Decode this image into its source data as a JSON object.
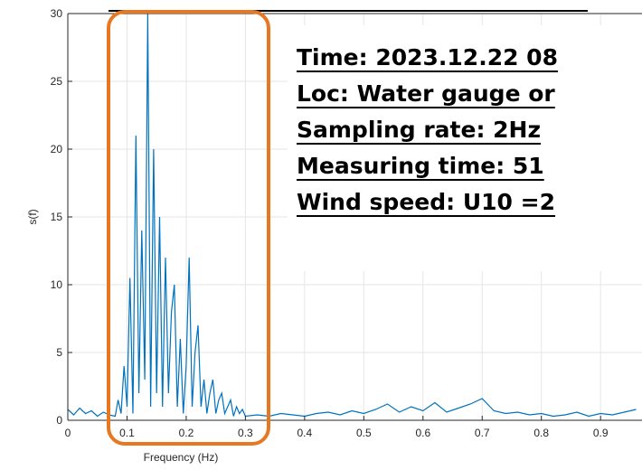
{
  "chart_data": {
    "type": "line",
    "xlabel": "Frequency (Hz)",
    "ylabel": "s(f)",
    "x": [
      0,
      0.01,
      0.02,
      0.03,
      0.04,
      0.05,
      0.06,
      0.07,
      0.08,
      0.085,
      0.09,
      0.095,
      0.1,
      0.105,
      0.11,
      0.115,
      0.12,
      0.125,
      0.13,
      0.135,
      0.14,
      0.145,
      0.15,
      0.155,
      0.16,
      0.165,
      0.17,
      0.175,
      0.18,
      0.185,
      0.19,
      0.195,
      0.2,
      0.205,
      0.21,
      0.215,
      0.22,
      0.225,
      0.23,
      0.235,
      0.24,
      0.245,
      0.25,
      0.255,
      0.26,
      0.265,
      0.27,
      0.275,
      0.28,
      0.285,
      0.29,
      0.295,
      0.3,
      0.32,
      0.34,
      0.36,
      0.38,
      0.4,
      0.42,
      0.44,
      0.46,
      0.48,
      0.5,
      0.52,
      0.54,
      0.56,
      0.58,
      0.6,
      0.62,
      0.64,
      0.66,
      0.68,
      0.7,
      0.72,
      0.74,
      0.76,
      0.78,
      0.8,
      0.82,
      0.84,
      0.86,
      0.88,
      0.9,
      0.92,
      0.94,
      0.96
    ],
    "series": [
      {
        "color": "#0072bd",
        "values": [
          0.8,
          0.4,
          0.9,
          0.5,
          0.7,
          0.3,
          0.6,
          0.4,
          0.3,
          1.5,
          0.5,
          4,
          1,
          10.5,
          0.5,
          21,
          2,
          14,
          3,
          30,
          1,
          20,
          2,
          15,
          1,
          12,
          2,
          8,
          10,
          1,
          6,
          0.5,
          4,
          12,
          1,
          5,
          7,
          1,
          3,
          0.5,
          2,
          3,
          0.5,
          1.5,
          2,
          0.5,
          1,
          1.5,
          0.3,
          1,
          0.5,
          0.8,
          0.3,
          0.4,
          0.3,
          0.5,
          0.4,
          0.3,
          0.5,
          0.6,
          0.4,
          0.7,
          0.5,
          0.8,
          1.2,
          0.6,
          1.0,
          0.7,
          1.3,
          0.6,
          0.9,
          1.2,
          1.6,
          0.7,
          0.5,
          0.6,
          0.4,
          0.5,
          0.3,
          0.4,
          0.6,
          0.3,
          0.5,
          0.4,
          0.6,
          0.8
        ]
      }
    ],
    "xlim": [
      0,
      0.97
    ],
    "xticks": [
      0,
      0.1,
      0.2,
      0.3,
      0.4,
      0.5,
      0.6,
      0.7,
      0.8,
      0.9
    ],
    "ylim": [
      0,
      30
    ],
    "yticks": [
      0,
      5,
      10,
      15,
      20,
      25,
      30
    ],
    "grid": true,
    "annotations": [
      "Time: 2023.12.22 08",
      "Loc: Water gauge or",
      "Sampling rate: 2Hz",
      "Measuring time: 51",
      "Wind speed: U10 =2"
    ]
  }
}
